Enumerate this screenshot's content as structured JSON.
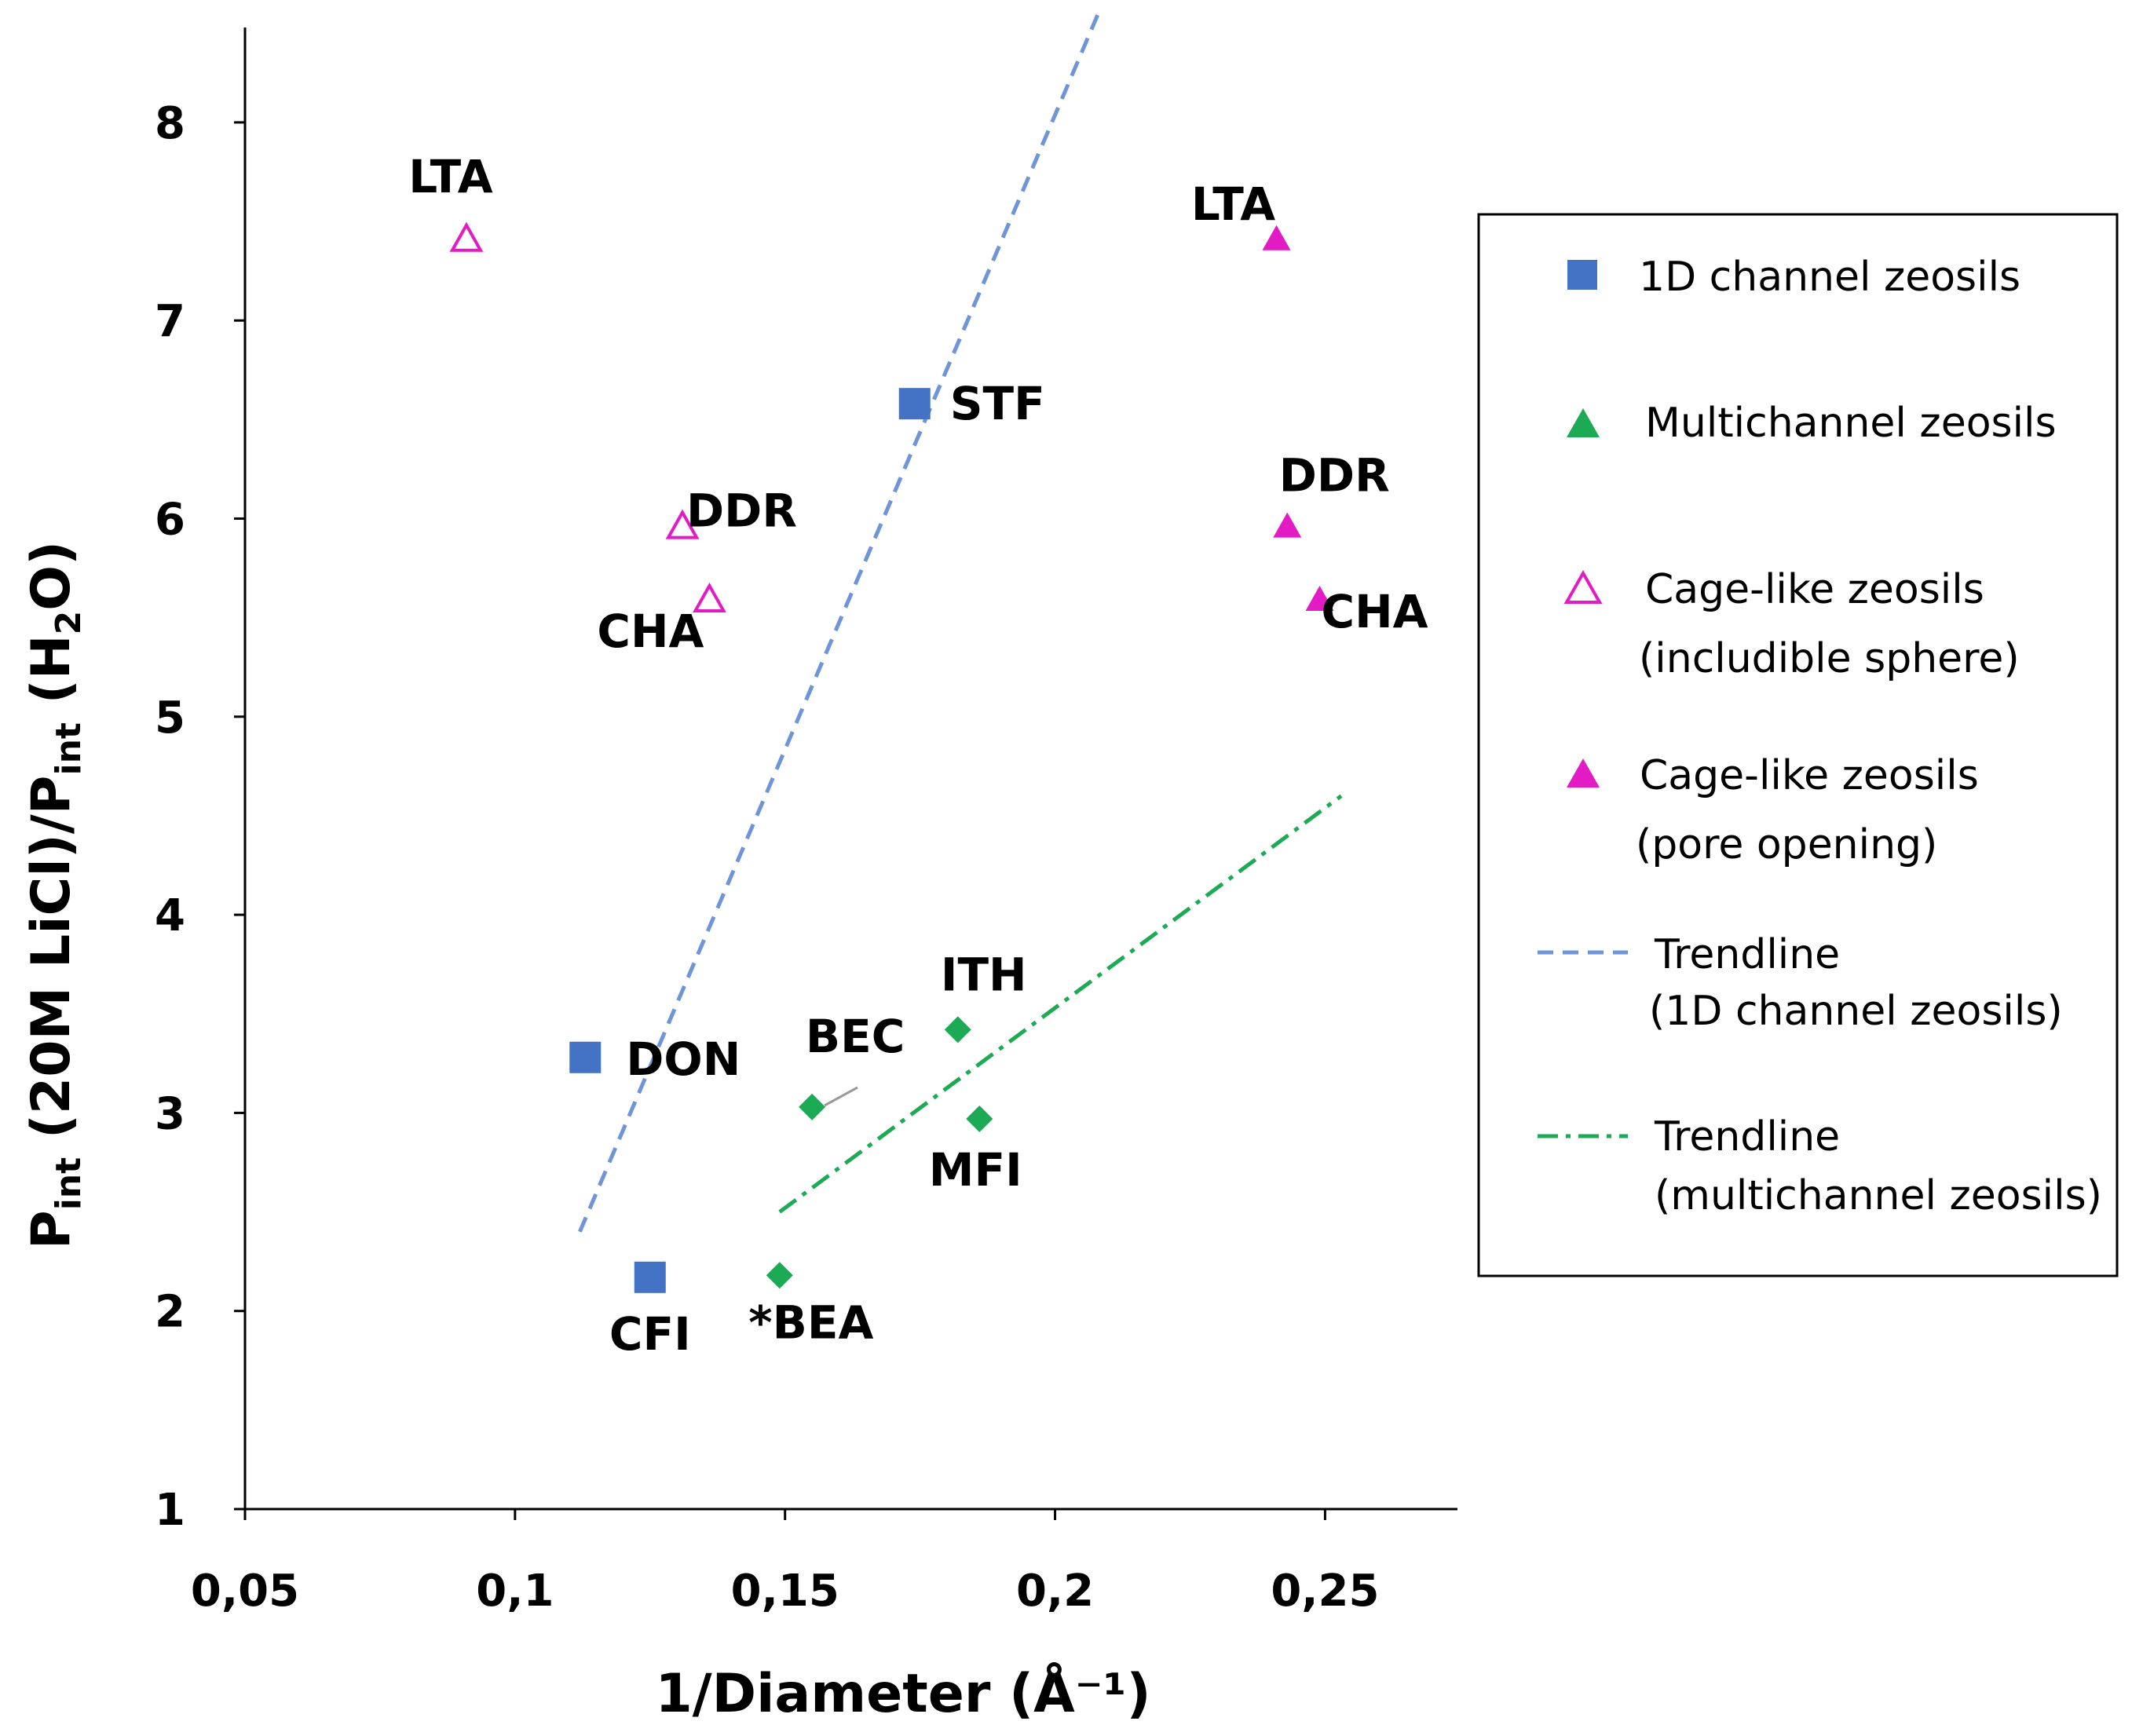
{
  "chart_data": {
    "type": "scatter",
    "xlabel": "1/Diameter (Å⁻¹)",
    "ylabel": "Pint (20M LiCl)/Pint (H2O)",
    "ylabel_parts": {
      "p1": "P",
      "sub1": "int",
      "mid": " (20M LiCl)/P",
      "sub2": "int",
      "mid2": " (H",
      "sub3": "2",
      "end": "O)"
    },
    "xlim": [
      0.05,
      0.275
    ],
    "ylim": [
      1,
      8.5
    ],
    "x_ticks": [
      0.05,
      0.1,
      0.15,
      0.2,
      0.25
    ],
    "x_tick_labels": [
      "0,05",
      "0,1",
      "0,15",
      "0,2",
      "0,25"
    ],
    "y_ticks": [
      1,
      2,
      3,
      4,
      5,
      6,
      7,
      8
    ],
    "y_tick_labels": [
      "1",
      "2",
      "3",
      "4",
      "5",
      "6",
      "7",
      "8"
    ],
    "grid": false,
    "legend_position": "right",
    "series": [
      {
        "name": "1D channel zeosils",
        "marker": "square",
        "filled": true,
        "color": "#4472C4",
        "points": [
          {
            "x": 0.174,
            "y": 6.58,
            "label": "STF"
          },
          {
            "x": 0.113,
            "y": 3.28,
            "label": "DON"
          },
          {
            "x": 0.125,
            "y": 2.17,
            "label": "CFI"
          }
        ]
      },
      {
        "name": "Multichannel zeosils",
        "marker": "diamond",
        "filled": true,
        "color": "#1DAA55",
        "points": [
          {
            "x": 0.182,
            "y": 3.42,
            "label": "ITH"
          },
          {
            "x": 0.155,
            "y": 3.03,
            "label": "BEC"
          },
          {
            "x": 0.186,
            "y": 2.97,
            "label": "MFI"
          },
          {
            "x": 0.149,
            "y": 2.18,
            "label": "*BEA"
          }
        ]
      },
      {
        "name": "Cage-like zeosils (includible sphere)",
        "marker": "triangle",
        "filled": false,
        "color": "#E21BC4",
        "points": [
          {
            "x": 0.091,
            "y": 7.41,
            "label": "LTA"
          },
          {
            "x": 0.131,
            "y": 5.96,
            "label": "DDR"
          },
          {
            "x": 0.136,
            "y": 5.59,
            "label": "CHA"
          }
        ]
      },
      {
        "name": "Cage-like zeosils (pore opening)",
        "marker": "triangle",
        "filled": true,
        "color": "#E21BC4",
        "points": [
          {
            "x": 0.241,
            "y": 7.41,
            "label": "LTA"
          },
          {
            "x": 0.243,
            "y": 5.96,
            "label": "DDR"
          },
          {
            "x": 0.249,
            "y": 5.59,
            "label": "CHA"
          }
        ]
      }
    ],
    "trendlines": [
      {
        "name": "Trendline (1D channel zeosils)",
        "style": "dashed",
        "color": "#6F95D8",
        "from": [
          0.112,
          2.4
        ],
        "to": [
          0.208,
          8.55
        ]
      },
      {
        "name": "Trendline (multichannel zeosils)",
        "style": "dashdot",
        "color": "#1DAA55",
        "from": [
          0.149,
          2.5
        ],
        "to": [
          0.253,
          4.6
        ]
      }
    ]
  },
  "legend": {
    "items": [
      {
        "line1": "1D channel zeosils",
        "line2": ""
      },
      {
        "line1": "Multichannel zeosils",
        "line2": ""
      },
      {
        "line1": "Cage-like zeosils",
        "line2": "(includible sphere)"
      },
      {
        "line1": "Cage-like zeosils",
        "line2": "(pore opening)"
      },
      {
        "line1": "Trendline",
        "line2": "(1D channel zeosils)"
      },
      {
        "line1": "Trendline",
        "line2": "(multichannel zeosils)"
      }
    ]
  }
}
